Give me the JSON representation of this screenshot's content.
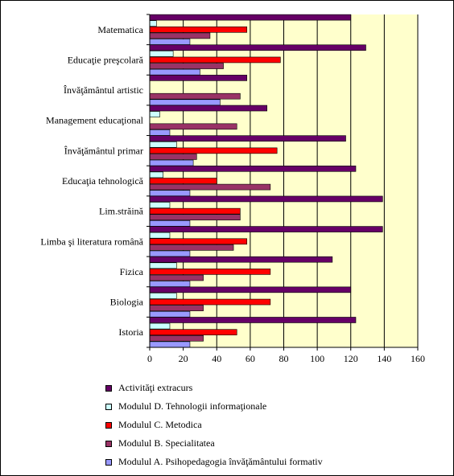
{
  "chart_data": {
    "type": "bar",
    "orientation": "horizontal",
    "categories": [
      "Matematica",
      "Educaţie preşcolară",
      "Învăţământul artistic",
      "Management educaţional",
      "Învăţământul primar",
      "Educaţia tehnologică",
      "Lim.străină",
      "Limba şi literatura română",
      "Fizica",
      "Biologia",
      "Istoria"
    ],
    "series": [
      {
        "name": "Activităţi extracurs",
        "color": "#660066",
        "values": [
          120,
          129,
          58,
          70,
          117,
          123,
          139,
          139,
          109,
          120,
          123
        ]
      },
      {
        "name": "Modulul D. Tehnologii informaţionale",
        "color": "#ccffff",
        "values": [
          4,
          14,
          0,
          6,
          16,
          8,
          12,
          12,
          16,
          16,
          12
        ]
      },
      {
        "name": "Modulul C. Metodica",
        "color": "#ff0000",
        "values": [
          58,
          78,
          0,
          0,
          76,
          40,
          54,
          58,
          72,
          72,
          52
        ]
      },
      {
        "name": "Modulul B. Specialitatea",
        "color": "#993366",
        "values": [
          36,
          44,
          54,
          52,
          28,
          72,
          54,
          50,
          32,
          32,
          32
        ]
      },
      {
        "name": "Modulul A. Psihopedagogia învăţământului formativ",
        "color": "#9999ff",
        "values": [
          24,
          30,
          42,
          12,
          26,
          24,
          24,
          24,
          24,
          24,
          24
        ]
      }
    ],
    "xlim": [
      0,
      160
    ],
    "xticks": [
      0,
      20,
      40,
      60,
      80,
      100,
      120,
      140,
      160
    ],
    "gridlines": "vertical at major ticks",
    "plot_background": "#ffffcc",
    "legend_position": "bottom"
  }
}
